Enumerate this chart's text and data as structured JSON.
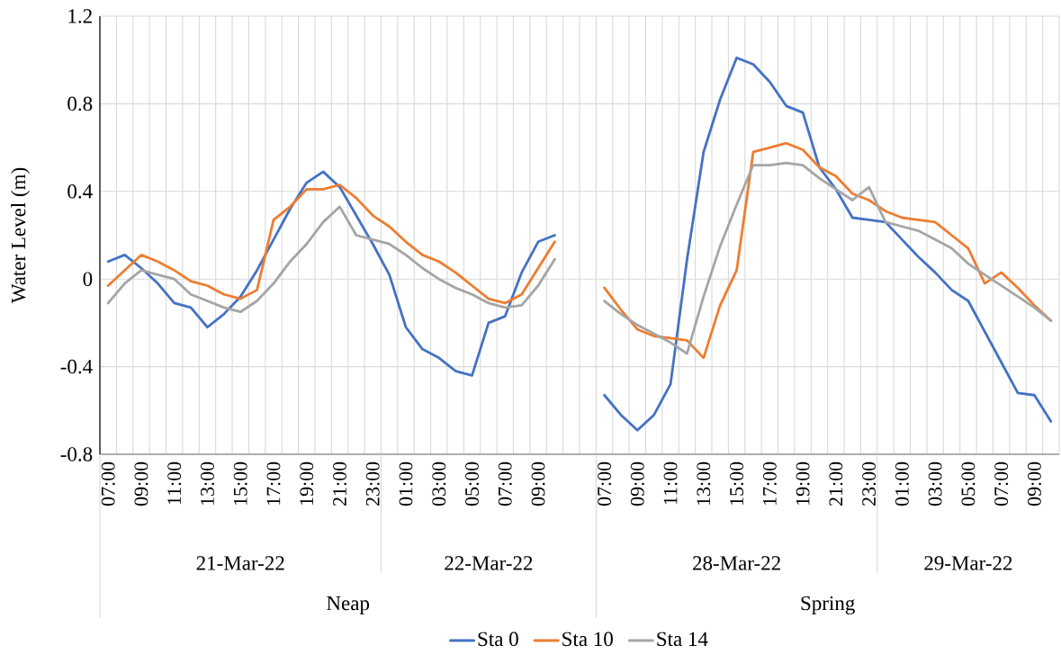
{
  "chart_data": {
    "type": "line",
    "ylabel": "Water Level (m)",
    "categories": [
      "07:00",
      null,
      "09:00",
      null,
      "11:00",
      null,
      "13:00",
      null,
      "15:00",
      null,
      "17:00",
      null,
      "19:00",
      null,
      "21:00",
      null,
      "23:00",
      null,
      "01:00",
      null,
      "03:00",
      null,
      "05:00",
      null,
      "07:00",
      null,
      "09:00",
      null,
      null,
      null,
      "07:00",
      null,
      "09:00",
      null,
      "11:00",
      null,
      "13:00",
      null,
      "15:00",
      null,
      "17:00",
      null,
      "19:00",
      null,
      "21:00",
      null,
      "23:00",
      null,
      "01:00",
      null,
      "03:00",
      null,
      "05:00",
      null,
      "07:00",
      null,
      "09:00",
      null
    ],
    "series": [
      {
        "name": "Sta 0",
        "color": "#4472c4",
        "values": [
          0.08,
          0.11,
          0.05,
          -0.02,
          -0.11,
          -0.13,
          -0.22,
          -0.16,
          -0.08,
          0.04,
          0.18,
          0.32,
          0.44,
          0.49,
          0.42,
          0.29,
          0.16,
          0.02,
          -0.22,
          -0.32,
          -0.36,
          -0.42,
          -0.44,
          -0.2,
          -0.17,
          0.03,
          0.17,
          0.2,
          null,
          null,
          -0.53,
          -0.62,
          -0.69,
          -0.62,
          -0.48,
          0.09,
          0.58,
          0.82,
          1.01,
          0.98,
          0.9,
          0.79,
          0.76,
          0.51,
          0.41,
          0.28,
          0.27,
          0.26,
          0.18,
          0.1,
          0.03,
          -0.05,
          -0.1,
          -0.24,
          -0.38,
          -0.52,
          -0.53,
          -0.65
        ]
      },
      {
        "name": "Sta 10",
        "color": "#ed7d31",
        "values": [
          -0.03,
          0.04,
          0.11,
          0.08,
          0.04,
          -0.01,
          -0.03,
          -0.07,
          -0.09,
          -0.05,
          0.27,
          0.33,
          0.41,
          0.41,
          0.43,
          0.37,
          0.29,
          0.24,
          0.17,
          0.11,
          0.08,
          0.03,
          -0.03,
          -0.09,
          -0.11,
          -0.07,
          0.05,
          0.17,
          null,
          null,
          -0.04,
          -0.14,
          -0.23,
          -0.26,
          -0.27,
          -0.28,
          -0.36,
          -0.12,
          0.04,
          0.58,
          0.6,
          0.62,
          0.59,
          0.51,
          0.47,
          0.39,
          0.36,
          0.31,
          0.28,
          0.27,
          0.26,
          0.2,
          0.14,
          -0.02,
          0.03,
          -0.04,
          -0.12,
          -0.19
        ]
      },
      {
        "name": "Sta 14",
        "color": "#a5a5a5",
        "values": [
          -0.11,
          -0.02,
          0.04,
          0.02,
          0.0,
          -0.07,
          -0.1,
          -0.13,
          -0.15,
          -0.1,
          -0.02,
          0.08,
          0.16,
          0.26,
          0.33,
          0.2,
          0.18,
          0.16,
          0.11,
          0.05,
          0.0,
          -0.04,
          -0.07,
          -0.11,
          -0.13,
          -0.12,
          -0.03,
          0.09,
          null,
          null,
          -0.1,
          -0.16,
          -0.21,
          -0.25,
          -0.29,
          -0.34,
          -0.08,
          0.15,
          0.34,
          0.52,
          0.52,
          0.53,
          0.52,
          0.46,
          0.41,
          0.36,
          0.42,
          0.26,
          0.24,
          0.22,
          0.18,
          0.14,
          0.07,
          0.02,
          -0.03,
          -0.08,
          -0.13,
          -0.19
        ]
      }
    ],
    "ylim": [
      -0.8,
      1.2
    ],
    "yticks": [
      -0.8,
      -0.4,
      0,
      0.4,
      0.8,
      1.2
    ],
    "grid": true,
    "legend": "bottom",
    "annotations": [
      "21-Mar-22",
      "22-Mar-22",
      "28-Mar-22",
      "29-Mar-22",
      "Neap",
      "Spring"
    ]
  }
}
